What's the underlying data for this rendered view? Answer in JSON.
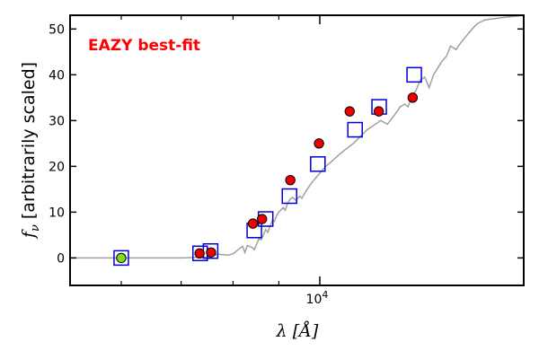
{
  "chart_data": {
    "type": "scatter",
    "title": "",
    "annotation": "EAZY best-fit",
    "annotation_color": "#ff0000",
    "xlabel": "λ [Å]",
    "ylabel_symbol": "f",
    "ylabel_sub": "ν",
    "ylabel_rest": " [arbitrarily scaled]",
    "xscale": "log",
    "xlim": [
      5260,
      16900
    ],
    "ylim": [
      -6,
      53
    ],
    "x_tick_major": [
      {
        "value": 10000,
        "base": "10",
        "exp": "4"
      }
    ],
    "x_tick_minor": [
      6000,
      7000,
      8000,
      9000,
      20000
    ],
    "y_ticks": [
      0,
      10,
      20,
      30,
      40,
      50
    ],
    "grid": false,
    "colors": {
      "template": "#a0a0a0",
      "model": "#0000dd",
      "observed": "#ee0000",
      "highlight": "#7ddc1f"
    },
    "series": [
      {
        "role": "template",
        "kind": "line",
        "x": [
          5260,
          6000,
          7000,
          7500,
          7700,
          7900,
          8000,
          8150,
          8200,
          8250,
          8300,
          8400,
          8450,
          8500,
          8550,
          8600,
          8650,
          8700,
          8750,
          8800,
          8850,
          8900,
          8950,
          9000,
          9100,
          9150,
          9200,
          9260,
          9320,
          9400,
          9500,
          9550,
          9650,
          9800,
          10000,
          10150,
          10300,
          10500,
          10700,
          10900,
          11100,
          11300,
          11500,
          11700,
          11900,
          12100,
          12300,
          12450,
          12550,
          12650,
          12800,
          12950,
          13100,
          13250,
          13400,
          13550,
          13700,
          13850,
          14000,
          14200,
          14400,
          14600,
          14800,
          15000,
          15300,
          16000,
          16900
        ],
        "y": [
          0,
          0,
          0,
          0.2,
          0.8,
          0.6,
          0.9,
          2.2,
          2.5,
          1.2,
          2.7,
          2.3,
          1.8,
          3.0,
          4.2,
          4.0,
          5.0,
          6.2,
          5.6,
          7.0,
          8.2,
          8.0,
          9.3,
          10.0,
          11.0,
          10.4,
          11.8,
          12.8,
          13.2,
          12.6,
          13.5,
          13.0,
          14.6,
          16.5,
          18.5,
          20.0,
          21.0,
          22.5,
          23.8,
          25.0,
          26.5,
          28.0,
          29.0,
          30.0,
          29.2,
          31.0,
          33.0,
          33.6,
          33.0,
          35.0,
          36.5,
          38.8,
          39.5,
          37.2,
          40.0,
          41.5,
          43.0,
          44.0,
          46.3,
          45.5,
          47.2,
          48.6,
          50.0,
          51.2,
          52.0,
          52.5,
          53.0
        ]
      },
      {
        "role": "model",
        "kind": "squares",
        "x": [
          6000,
          7350,
          7550,
          8450,
          8700,
          9250,
          9950,
          10950,
          11650,
          12750
        ],
        "y": [
          0,
          1,
          1.5,
          6,
          8.5,
          13.5,
          20.5,
          28,
          33,
          40
        ]
      },
      {
        "role": "observed",
        "kind": "circles",
        "x": [
          7340,
          7560,
          8420,
          8620,
          9270,
          9980,
          10800,
          11640,
          12700
        ],
        "y": [
          1,
          1.2,
          7.5,
          8.5,
          17,
          25,
          32,
          32,
          35
        ]
      },
      {
        "role": "highlight",
        "kind": "circles",
        "x": [
          6000
        ],
        "y": [
          0
        ]
      }
    ]
  }
}
